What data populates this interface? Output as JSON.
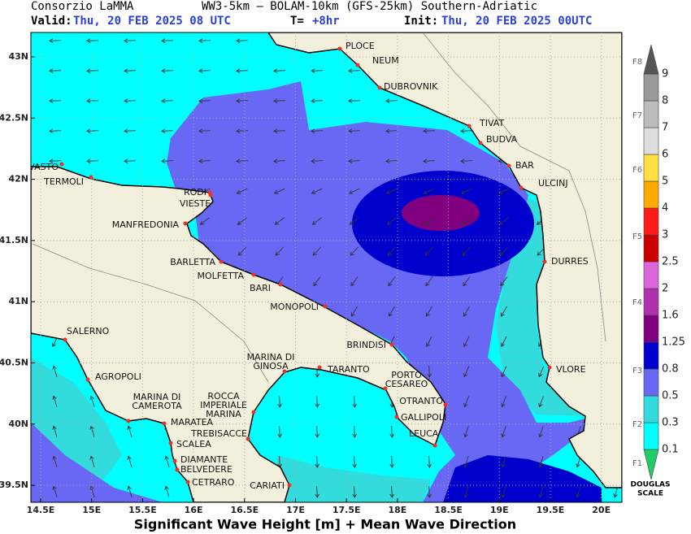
{
  "header": {
    "line1": [
      "Consorzio LaMMA",
      "WW3-5km – BOLAM-10km (GFS-25km) Southern-Adriatic"
    ],
    "valid_label": "Valid:",
    "valid_time": "Thu, 20 FEB 2025  08 UTC",
    "lead_label": "T=",
    "lead_time": "+8hr",
    "init_label": "Init:",
    "init_time": "Thu, 20 FEB 2025 00UTC"
  },
  "axes": {
    "lat_labels": [
      "43N",
      "42.5N",
      "42N",
      "41.5N",
      "41N",
      "40.5N",
      "40N",
      "39.5N"
    ],
    "lon_labels": [
      "14.5E",
      "15E",
      "15.5E",
      "16E",
      "16.5E",
      "17E",
      "17.5E",
      "18E",
      "18.5E",
      "19E",
      "19.5E",
      "20E"
    ]
  },
  "cities": [
    {
      "lines": [
        "PLOCE"
      ]
    },
    {
      "lines": [
        "NEUM"
      ]
    },
    {
      "lines": [
        "DUBROVNIK"
      ]
    },
    {
      "lines": [
        "TIVAT"
      ]
    },
    {
      "lines": [
        "BUDVA"
      ]
    },
    {
      "lines": [
        "BAR"
      ]
    },
    {
      "lines": [
        "ULCINJ"
      ]
    },
    {
      "lines": [
        "DURRES"
      ]
    },
    {
      "lines": [
        "VLORE"
      ]
    },
    {
      "lines": [
        "VASTO"
      ]
    },
    {
      "lines": [
        "TERMOLI"
      ]
    },
    {
      "lines": [
        "RODI"
      ]
    },
    {
      "lines": [
        "VIESTE"
      ]
    },
    {
      "lines": [
        "MANFREDONIA"
      ]
    },
    {
      "lines": [
        "BARLETTA"
      ]
    },
    {
      "lines": [
        "MOLFETTA"
      ]
    },
    {
      "lines": [
        "BARI"
      ]
    },
    {
      "lines": [
        "MONOPOLI"
      ]
    },
    {
      "lines": [
        "BRINDISI"
      ]
    },
    {
      "lines": [
        "SALERNO"
      ]
    },
    {
      "lines": [
        "AGROPOLI"
      ]
    },
    {
      "lines": [
        "MARINA DI",
        "CAMEROTA"
      ]
    },
    {
      "lines": [
        "MARATEA"
      ]
    },
    {
      "lines": [
        "SCALEA"
      ]
    },
    {
      "lines": [
        "DIAMANTE"
      ]
    },
    {
      "lines": [
        "BELVEDERE"
      ]
    },
    {
      "lines": [
        "CETRARO"
      ]
    },
    {
      "lines": [
        "ROCCA",
        "IMPERIALE",
        "MARINA"
      ]
    },
    {
      "lines": [
        "TREBISACCE"
      ]
    },
    {
      "lines": [
        "CARIATI"
      ]
    },
    {
      "lines": [
        "MARINA DI",
        "GINOSA"
      ]
    },
    {
      "lines": [
        "TARANTO"
      ]
    },
    {
      "lines": [
        "PORTO",
        "CESAREO"
      ]
    },
    {
      "lines": [
        "OTRANTO"
      ]
    },
    {
      "lines": [
        "GALLIPOLI"
      ]
    },
    {
      "lines": [
        "LEUCA"
      ]
    }
  ],
  "legend": {
    "levels": [
      0.1,
      0.3,
      0.5,
      0.8,
      1.25,
      1.6,
      2,
      2.5,
      3,
      4,
      5,
      6,
      7,
      8,
      9
    ],
    "colors": [
      "#22cc66",
      "#00ffff",
      "#33dcdc",
      "#6868f4",
      "#0000cc",
      "#800080",
      "#b030b0",
      "#dd66dd",
      "#cc0000",
      "#ff1a1a",
      "#ffaa00",
      "#ffe040",
      "#dddddd",
      "#bbbbbb",
      "#999999",
      "#555555"
    ],
    "douglas": [
      "F1",
      "F2",
      "F3",
      "F4",
      "F5",
      "F6",
      "F7",
      "F8"
    ],
    "scale_title": [
      "DOUGLAS",
      "SCALE"
    ]
  },
  "footer": "Significant Wave Height [m] + Mean Wave Direction"
}
